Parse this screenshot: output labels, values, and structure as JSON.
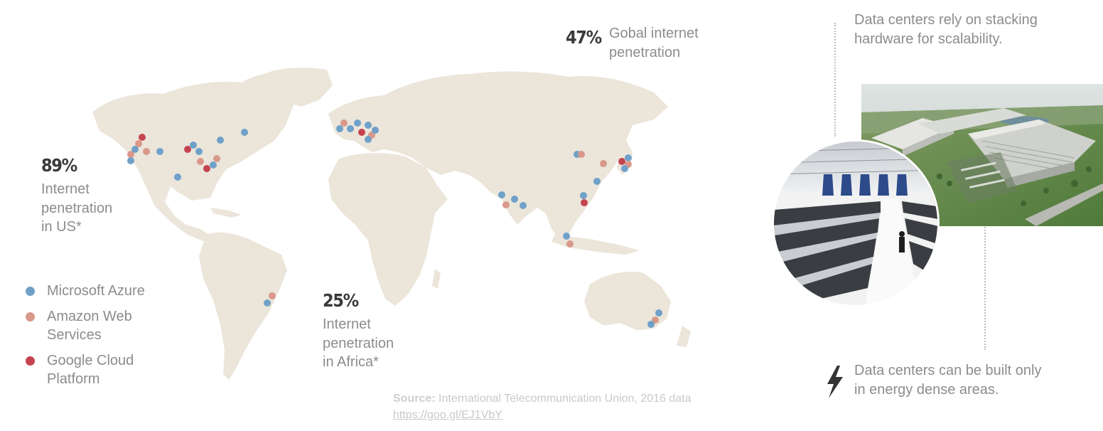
{
  "stats": {
    "us": {
      "value": "89%",
      "label_lines": [
        "Internet",
        "penetration",
        "in US*"
      ]
    },
    "africa": {
      "value": "25%",
      "label_lines": [
        "Internet",
        "penetration",
        "in Africa*"
      ]
    },
    "global": {
      "value": "47%",
      "label_lines": [
        "Gobal internet",
        "penetration"
      ]
    }
  },
  "legend": [
    {
      "key": "azure",
      "lines": [
        "Microsoft Azure"
      ],
      "color": "#6fa1c9"
    },
    {
      "key": "aws",
      "lines": [
        "Amazon Web",
        "Services"
      ],
      "color": "#d9988a"
    },
    {
      "key": "google",
      "lines": [
        "Google Cloud",
        "Platform"
      ],
      "color": "#c4434f"
    }
  ],
  "map": {
    "land_color": "#ebe5da"
  },
  "source": {
    "key": "Source:",
    "text": " International Telecommunication Union, 2016 data",
    "link": "https://goo.gl/EJ1VbY"
  },
  "notes": {
    "top": [
      "Data centers rely on stacking",
      "hardware for scalability."
    ],
    "bottom": [
      "Data centers can be built only",
      "in energy dense areas."
    ]
  },
  "icons": {
    "bolt": "lightning-bolt-icon"
  }
}
